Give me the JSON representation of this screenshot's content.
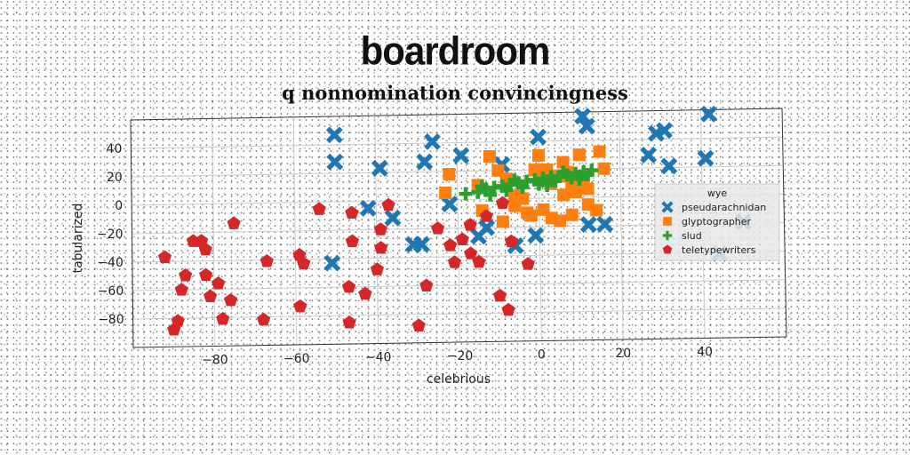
{
  "header": {
    "title": "boardroom",
    "subtitle": "q nonnomination convincingness"
  },
  "chart_data": {
    "type": "scatter",
    "title": "q nonnomination convincingness",
    "xlabel": "celebrious",
    "ylabel": "tabularized",
    "xlim": [
      -100,
      60
    ],
    "ylim": [
      -100,
      60
    ],
    "xticks": [
      -80,
      -60,
      -40,
      -20,
      0,
      20,
      40
    ],
    "yticks": [
      -80,
      -60,
      -40,
      -20,
      0,
      20,
      40
    ],
    "grid": true,
    "legend": {
      "placement": "center-right",
      "title": "wye"
    },
    "series": [
      {
        "name": "pseudarachnidan",
        "marker": "x",
        "color": "#1f77b4",
        "points": [
          [
            -50,
            47
          ],
          [
            -50,
            28
          ],
          [
            -39,
            23
          ],
          [
            -28,
            27
          ],
          [
            -26,
            41
          ],
          [
            -19,
            31
          ],
          [
            -9,
            24
          ],
          [
            -42,
            -5
          ],
          [
            -36,
            -12
          ],
          [
            -31,
            -31
          ],
          [
            -29,
            -31
          ],
          [
            -22,
            -3
          ],
          [
            -15,
            -26
          ],
          [
            -13,
            -20
          ],
          [
            -6,
            -33
          ],
          [
            -1,
            -26
          ],
          [
            0,
            43
          ],
          [
            11,
            57
          ],
          [
            12,
            50
          ],
          [
            27,
            29
          ],
          [
            29,
            44
          ],
          [
            31,
            46
          ],
          [
            32,
            21
          ],
          [
            41,
            26
          ],
          [
            42,
            57
          ],
          [
            12,
            -19
          ],
          [
            16,
            -19
          ],
          [
            -51,
            -43
          ],
          [
            50,
            -19
          ],
          [
            44,
            -41
          ]
        ]
      },
      {
        "name": "glyptographer",
        "marker": "s",
        "color": "#ff7f0e",
        "points": [
          [
            -22,
            18
          ],
          [
            -23,
            5
          ],
          [
            -15,
            10
          ],
          [
            -12,
            30
          ],
          [
            -10,
            20
          ],
          [
            -8,
            14
          ],
          [
            -6,
            2
          ],
          [
            -6,
            -5
          ],
          [
            -3,
            -10
          ],
          [
            -1,
            20
          ],
          [
            0,
            30
          ],
          [
            2,
            20
          ],
          [
            3,
            10
          ],
          [
            5,
            15
          ],
          [
            6,
            25
          ],
          [
            7,
            18
          ],
          [
            8,
            8
          ],
          [
            9,
            4
          ],
          [
            10,
            30
          ],
          [
            11,
            14
          ],
          [
            12,
            6
          ],
          [
            14,
            -9
          ],
          [
            15,
            32
          ],
          [
            -2,
            -12
          ],
          [
            3,
            -14
          ],
          [
            5,
            -16
          ],
          [
            8,
            -12
          ],
          [
            12,
            -5
          ],
          [
            -4,
            0
          ],
          [
            1,
            -8
          ],
          [
            -9,
            -16
          ],
          [
            -14,
            -8
          ],
          [
            6,
            2
          ],
          [
            16,
            20
          ]
        ]
      },
      {
        "name": "slud",
        "marker": "+",
        "color": "#2ca02c",
        "points": [
          [
            -18,
            4
          ],
          [
            -15,
            5
          ],
          [
            -13,
            7
          ],
          [
            -11,
            8
          ],
          [
            -9,
            9
          ],
          [
            -7,
            10
          ],
          [
            -5,
            11
          ],
          [
            -3,
            12
          ],
          [
            -1,
            13
          ],
          [
            1,
            14
          ],
          [
            3,
            15
          ],
          [
            5,
            15
          ],
          [
            7,
            16
          ],
          [
            9,
            17
          ],
          [
            11,
            18
          ],
          [
            13,
            19
          ],
          [
            -12,
            3
          ],
          [
            -8,
            6
          ],
          [
            -4,
            8
          ],
          [
            0,
            10
          ],
          [
            4,
            12
          ],
          [
            8,
            14
          ],
          [
            12,
            16
          ],
          [
            -6,
            13
          ],
          [
            2,
            9
          ],
          [
            10,
            13
          ],
          [
            -14,
            9
          ],
          [
            6,
            18
          ]
        ]
      },
      {
        "name": "teletypewriters",
        "marker": "p",
        "color": "#d62728",
        "points": [
          [
            -92,
            -37
          ],
          [
            -90,
            -88
          ],
          [
            -89,
            -82
          ],
          [
            -88,
            -60
          ],
          [
            -87,
            -50
          ],
          [
            -85,
            -26
          ],
          [
            -83,
            -26
          ],
          [
            -82,
            -50
          ],
          [
            -82,
            -32
          ],
          [
            -81,
            -65
          ],
          [
            -79,
            -56
          ],
          [
            -78,
            -81
          ],
          [
            -76,
            -68
          ],
          [
            -75,
            -14
          ],
          [
            -68,
            -82
          ],
          [
            -67,
            -41
          ],
          [
            -59,
            -73
          ],
          [
            -59,
            -37
          ],
          [
            -58,
            -43
          ],
          [
            -54,
            -5
          ],
          [
            -47,
            -85
          ],
          [
            -47,
            -60
          ],
          [
            -46,
            -28
          ],
          [
            -46,
            -8
          ],
          [
            -43,
            -65
          ],
          [
            -40,
            -48
          ],
          [
            -39,
            -33
          ],
          [
            -39,
            -20
          ],
          [
            -37,
            -3
          ],
          [
            -30,
            -88
          ],
          [
            -28,
            -60
          ],
          [
            -22,
            -32
          ],
          [
            -21,
            -44
          ],
          [
            -19,
            -28
          ],
          [
            -17,
            -18
          ],
          [
            -17,
            -38
          ],
          [
            -15,
            -44
          ],
          [
            -13,
            -12
          ],
          [
            -10,
            -68
          ],
          [
            -8,
            -78
          ],
          [
            -7,
            -30
          ],
          [
            -3,
            -46
          ],
          [
            -9,
            -3
          ],
          [
            -25,
            -20
          ]
        ]
      }
    ]
  }
}
